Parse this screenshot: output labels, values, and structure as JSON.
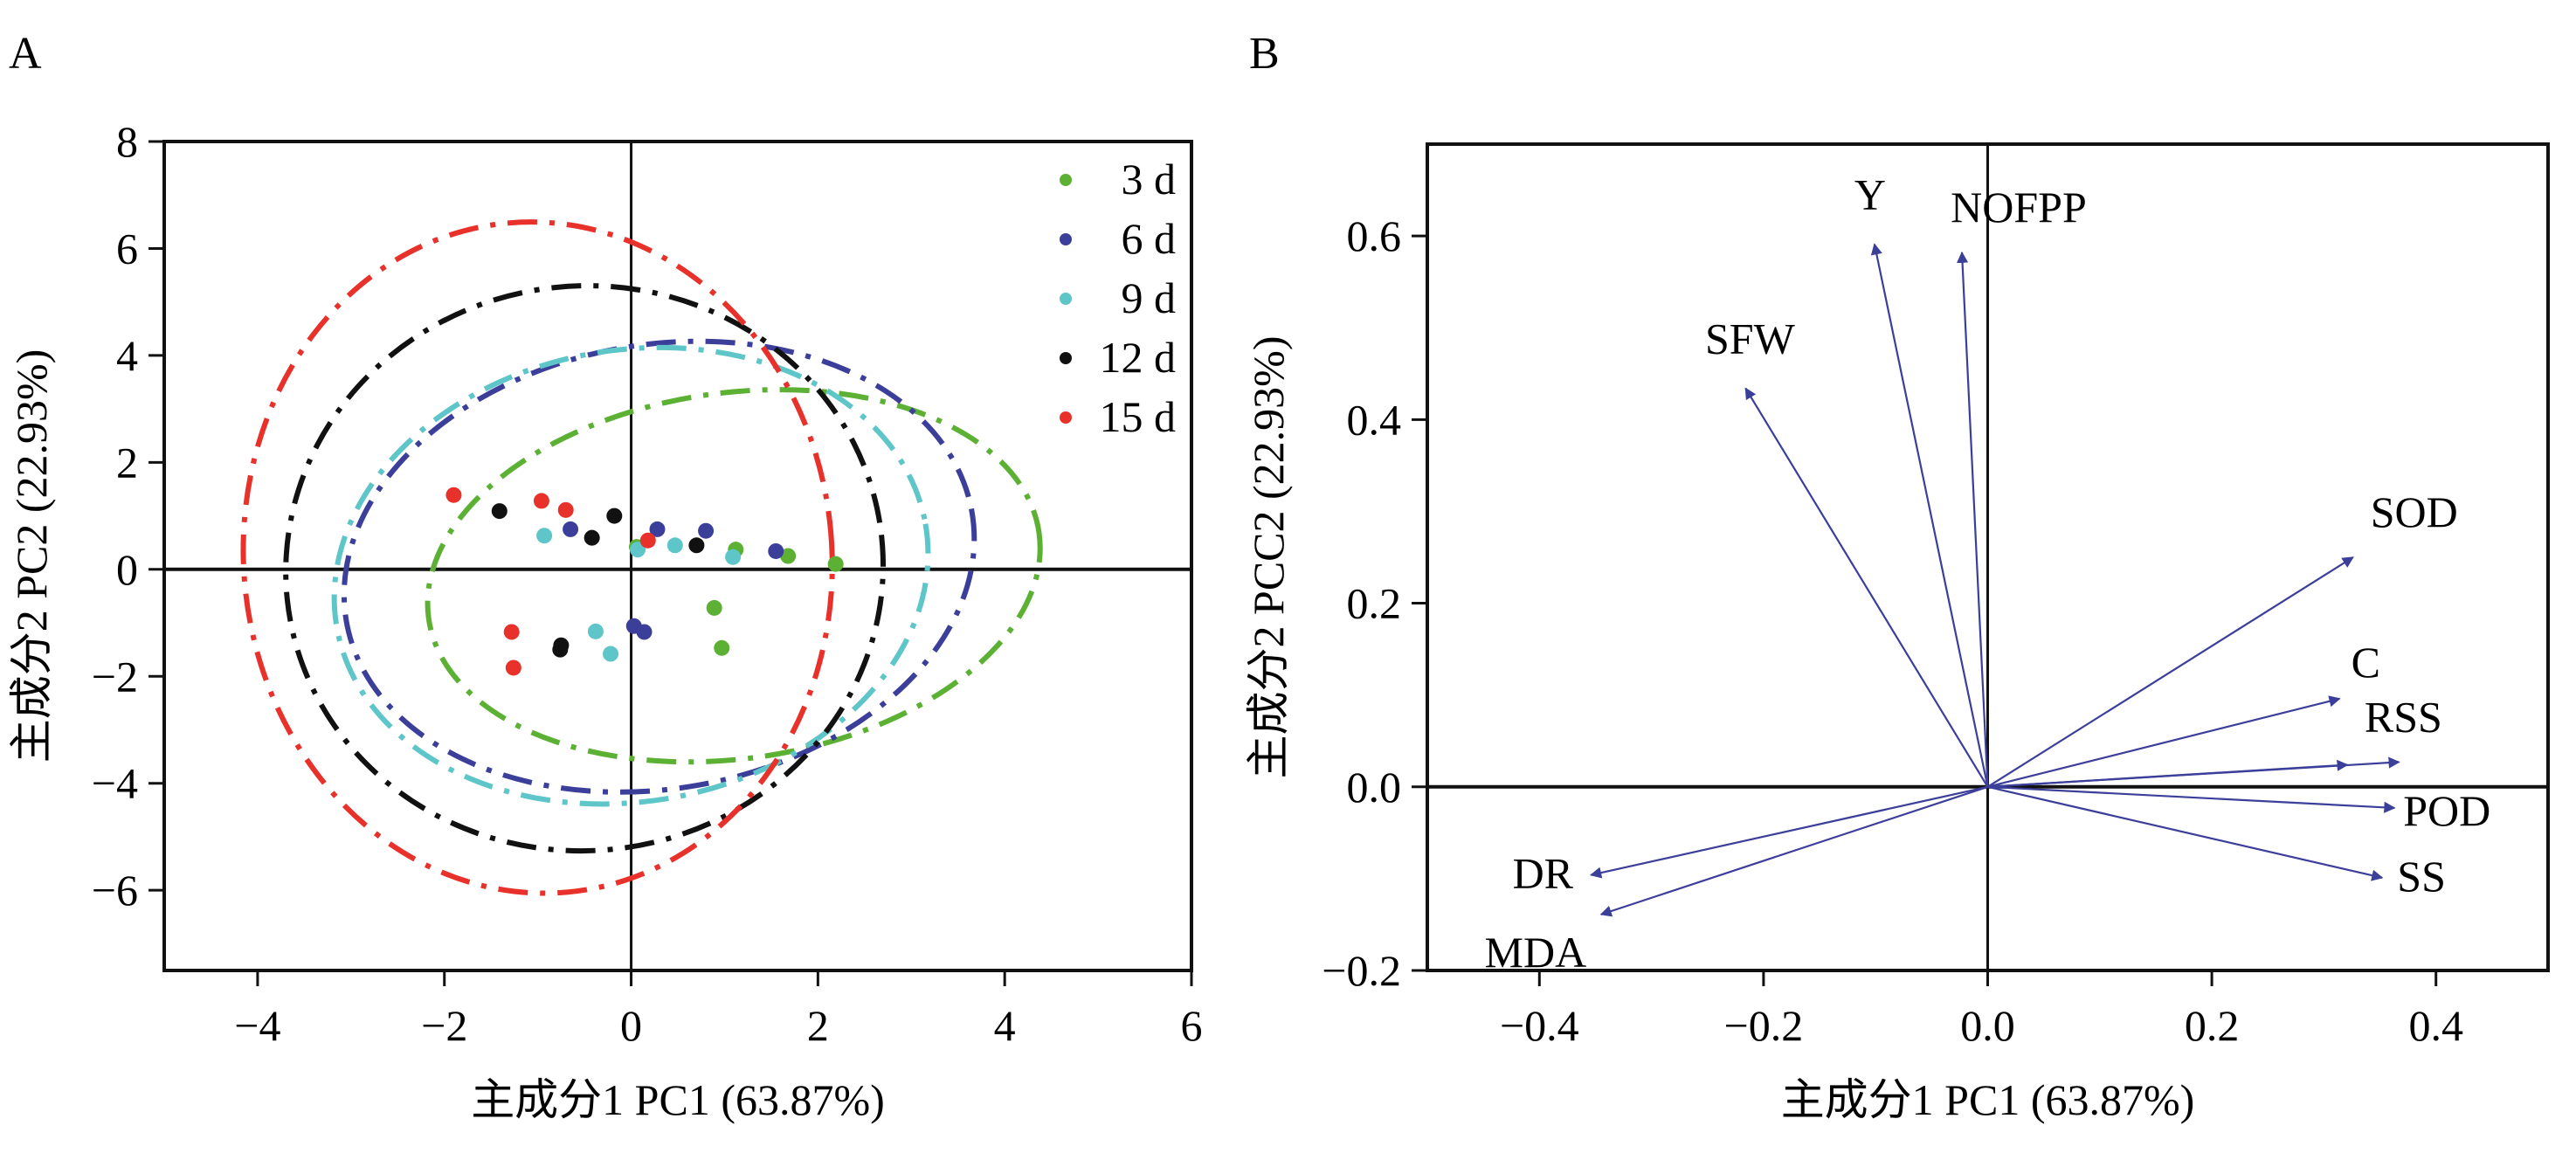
{
  "chart_data": [
    {
      "panel": "A",
      "type": "scatter",
      "xlabel": "主成分1 PC1 (63.87%)",
      "ylabel": "主成分2 PC2 (22.93%)",
      "xlim": [
        -5,
        6
      ],
      "ylim": [
        -7.5,
        8
      ],
      "xticks": [
        -4,
        -2,
        0,
        2,
        4,
        6
      ],
      "yticks": [
        -6,
        -4,
        -2,
        0,
        2,
        4,
        6,
        8
      ],
      "xtick_labels": [
        "−4",
        "−2",
        "0",
        "2",
        "4",
        "6"
      ],
      "ytick_labels": [
        "−6",
        "−4",
        "−2",
        "0",
        "2",
        "4",
        "6",
        "8"
      ],
      "grid": false,
      "reference_lines": {
        "x": 0,
        "y": 0
      },
      "legend_position": "top-right",
      "series": [
        {
          "name": "3 d",
          "color": "#5cb135",
          "points": [
            [
              0.06,
              0.42
            ],
            [
              1.12,
              0.37
            ],
            [
              1.68,
              0.25
            ],
            [
              2.19,
              0.1
            ],
            [
              0.89,
              -0.72
            ],
            [
              0.97,
              -1.47
            ]
          ],
          "ellipse": {
            "cx": 1.1,
            "cy": -0.12,
            "rx": 3.3,
            "ry": 3.42,
            "angle_deg": -8
          }
        },
        {
          "name": "6 d",
          "color": "#3b3f9a",
          "points": [
            [
              -0.65,
              0.75
            ],
            [
              0.28,
              0.75
            ],
            [
              0.8,
              0.72
            ],
            [
              1.55,
              0.34
            ],
            [
              0.03,
              -1.06
            ],
            [
              0.14,
              -1.17
            ]
          ],
          "ellipse": {
            "cx": 0.3,
            "cy": 0.05,
            "rx": 3.4,
            "ry": 4.15,
            "angle_deg": -10
          }
        },
        {
          "name": "9 d",
          "color": "#5ec5c8",
          "points": [
            [
              -0.93,
              0.63
            ],
            [
              0.07,
              0.37
            ],
            [
              0.47,
              0.45
            ],
            [
              1.09,
              0.23
            ],
            [
              -0.38,
              -1.16
            ],
            [
              -0.22,
              -1.58
            ]
          ],
          "ellipse": {
            "cx": 0.0,
            "cy": -0.12,
            "rx": 3.2,
            "ry": 4.22,
            "angle_deg": -10
          }
        },
        {
          "name": "12 d",
          "color": "#111111",
          "points": [
            [
              -1.41,
              1.09
            ],
            [
              -0.18,
              1.0
            ],
            [
              -0.42,
              0.59
            ],
            [
              0.7,
              0.45
            ],
            [
              -0.75,
              -1.42
            ],
            [
              -0.76,
              -1.5
            ]
          ],
          "ellipse": {
            "cx": -0.5,
            "cy": 0.02,
            "rx": 3.2,
            "ry": 5.28,
            "angle_deg": -6
          }
        },
        {
          "name": "15 d",
          "color": "#e8312a",
          "points": [
            [
              -1.9,
              1.39
            ],
            [
              -0.96,
              1.28
            ],
            [
              -0.7,
              1.11
            ],
            [
              0.18,
              0.54
            ],
            [
              -1.28,
              -1.17
            ],
            [
              -1.26,
              -1.84
            ]
          ],
          "ellipse": {
            "cx": -1.0,
            "cy": 0.22,
            "rx": 3.15,
            "ry": 6.28,
            "angle_deg": -5
          }
        }
      ]
    },
    {
      "panel": "B",
      "type": "scatter",
      "subtype": "loading-vectors",
      "xlabel": "主成分1 PC1 (63.87%)",
      "ylabel": "主成分2 PCC2 (22.93%)",
      "xlim": [
        -0.5,
        0.5
      ],
      "ylim": [
        -0.2,
        0.7
      ],
      "xticks": [
        -0.4,
        -0.2,
        0.0,
        0.2,
        0.4
      ],
      "yticks": [
        -0.2,
        0.0,
        0.2,
        0.4,
        0.6
      ],
      "xtick_labels": [
        "−0.4",
        "−0.2",
        "0.0",
        "0.2",
        "0.4"
      ],
      "ytick_labels": [
        "−0.2",
        "0.0",
        "0.2",
        "0.4",
        "0.6"
      ],
      "grid": false,
      "reference_lines": {
        "x": 0,
        "y": 0
      },
      "vector_color": "#3b3f9a",
      "vectors": [
        {
          "label": "Y",
          "x": -0.101,
          "y": 0.591
        },
        {
          "label": "NOFPP",
          "x": -0.023,
          "y": 0.582
        },
        {
          "label": "SFW",
          "x": -0.216,
          "y": 0.434
        },
        {
          "label": "SOD",
          "x": 0.326,
          "y": 0.25
        },
        {
          "label": "C",
          "x": 0.314,
          "y": 0.096
        },
        {
          "label": "",
          "x": 0.321,
          "y": 0.024
        },
        {
          "label": "RSS",
          "x": 0.367,
          "y": 0.027
        },
        {
          "label": "POD",
          "x": 0.363,
          "y": -0.023
        },
        {
          "label": "SS",
          "x": 0.352,
          "y": -0.099
        },
        {
          "label": "DR",
          "x": -0.354,
          "y": -0.096
        },
        {
          "label": "MDA",
          "x": -0.345,
          "y": -0.139
        }
      ]
    }
  ],
  "panels": {
    "a_label": "A",
    "b_label": "B"
  }
}
